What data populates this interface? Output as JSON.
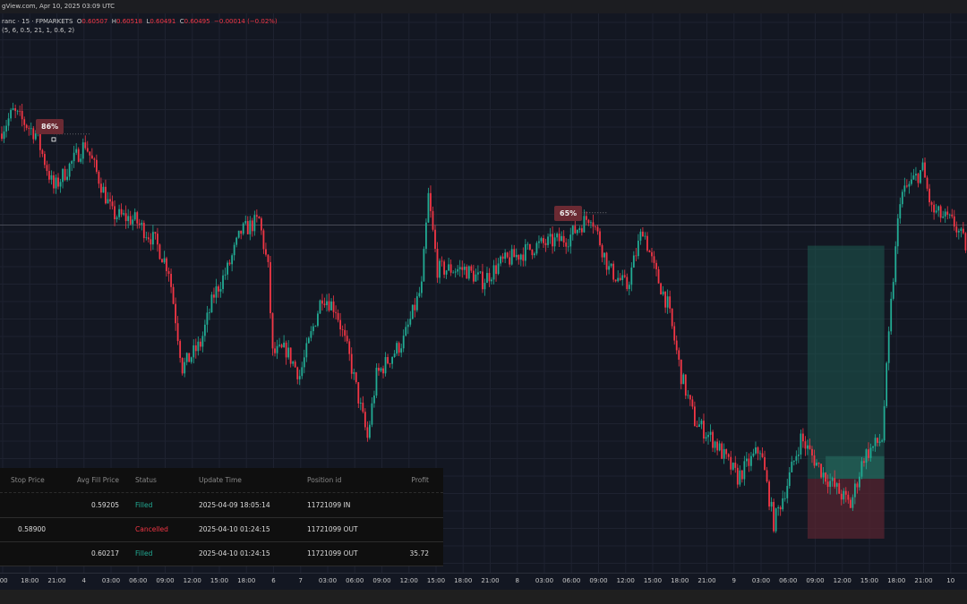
{
  "topbar": {
    "text": "gView.com, Apr 10, 2025 03:09 UTC"
  },
  "legend": {
    "symbol": "ranc · 15 · FPMARKETS",
    "o_label": "O",
    "o": "0.60507",
    "h_label": "H",
    "h": "0.60518",
    "l_label": "L",
    "l": "0.60491",
    "c_label": "C",
    "c": "0.60495",
    "change": "−0.00014 (−0.02%)",
    "indicator": "(5, 6, 0.5, 21, 1, 0.6, 2)"
  },
  "colors": {
    "up": "#22ab94",
    "down": "#f23645",
    "background": "#131722",
    "grid": "#1e2230"
  },
  "annotations": [
    {
      "label": "86%",
      "bar": 23,
      "price": 0.6093
    },
    {
      "label": "65%",
      "bar": 252,
      "price": 0.6053
    }
  ],
  "chart_data": {
    "type": "candlestick",
    "x_unit": "15-minute bar index",
    "price_path": [
      [
        0,
        0.6096
      ],
      [
        6,
        0.6107
      ],
      [
        16,
        0.6096
      ],
      [
        24,
        0.6068
      ],
      [
        38,
        0.6091
      ],
      [
        50,
        0.6055
      ],
      [
        60,
        0.6052
      ],
      [
        69,
        0.6041
      ],
      [
        75,
        0.6027
      ],
      [
        81,
        0.5977
      ],
      [
        89,
        0.5989
      ],
      [
        95,
        0.6014
      ],
      [
        101,
        0.6027
      ],
      [
        107,
        0.6046
      ],
      [
        115,
        0.6052
      ],
      [
        119,
        0.6027
      ],
      [
        121,
        0.5984
      ],
      [
        127,
        0.5986
      ],
      [
        133,
        0.5973
      ],
      [
        143,
        0.6014
      ],
      [
        149,
        0.6007
      ],
      [
        155,
        0.5982
      ],
      [
        163,
        0.5941
      ],
      [
        167,
        0.5973
      ],
      [
        179,
        0.5991
      ],
      [
        187,
        0.6018
      ],
      [
        190,
        0.6064
      ],
      [
        194,
        0.6027
      ],
      [
        206,
        0.6027
      ],
      [
        214,
        0.6021
      ],
      [
        222,
        0.603
      ],
      [
        238,
        0.6039
      ],
      [
        252,
        0.6043
      ],
      [
        262,
        0.6055
      ],
      [
        270,
        0.6027
      ],
      [
        278,
        0.6018
      ],
      [
        285,
        0.6048
      ],
      [
        290,
        0.6027
      ],
      [
        296,
        0.6009
      ],
      [
        302,
        0.5973
      ],
      [
        308,
        0.595
      ],
      [
        317,
        0.5939
      ],
      [
        327,
        0.5921
      ],
      [
        337,
        0.5936
      ],
      [
        343,
        0.5898
      ],
      [
        349,
        0.5918
      ],
      [
        355,
        0.5941
      ],
      [
        365,
        0.5923
      ],
      [
        377,
        0.5907
      ],
      [
        383,
        0.5932
      ],
      [
        391,
        0.5941
      ],
      [
        395,
        0.6009
      ],
      [
        399,
        0.6064
      ],
      [
        409,
        0.6078
      ],
      [
        413,
        0.6057
      ],
      [
        423,
        0.605
      ],
      [
        429,
        0.6037
      ]
    ],
    "current_price": 0.60495,
    "position": {
      "entry": 0.59205,
      "stop": 0.589,
      "target": 0.6039,
      "exit": 0.60217
    },
    "x_ticks": [
      ":00",
      "18:00",
      "21:00",
      "4",
      "03:00",
      "06:00",
      "09:00",
      "12:00",
      "15:00",
      "18:00",
      "6",
      "7",
      "03:00",
      "06:00",
      "09:00",
      "12:00",
      "15:00",
      "18:00",
      "21:00",
      "8",
      "03:00",
      "06:00",
      "09:00",
      "12:00",
      "15:00",
      "18:00",
      "21:00",
      "9",
      "03:00",
      "06:00",
      "09:00",
      "12:00",
      "15:00",
      "18:00",
      "21:00",
      "10"
    ]
  },
  "orders_table": {
    "headers": [
      "Stop Price",
      "Avg Fill Price",
      "Status",
      "Update Time",
      "Position id",
      "Profit"
    ],
    "rows": [
      {
        "stop": "",
        "avg": "0.59205",
        "status": "Filled",
        "time": "2025-04-09 18:05:14",
        "pos": "11721099 IN",
        "profit": ""
      },
      {
        "stop": "0.58900",
        "avg": "",
        "status": "Cancelled",
        "time": "2025-04-10 01:24:15",
        "pos": "11721099 OUT",
        "profit": ""
      },
      {
        "stop": "",
        "avg": "0.60217",
        "status": "Filled",
        "time": "2025-04-10 01:24:15",
        "pos": "11721099 OUT",
        "profit": "35.72"
      }
    ]
  }
}
